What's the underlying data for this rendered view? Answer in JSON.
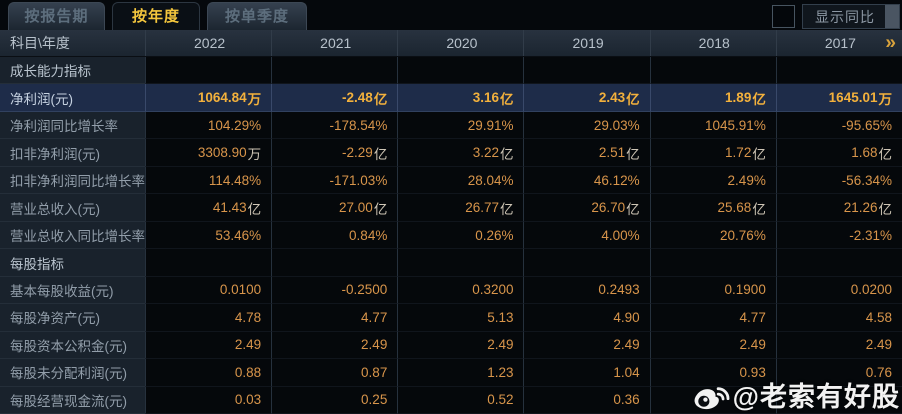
{
  "tabs": [
    {
      "label": "按报告期",
      "active": false
    },
    {
      "label": "按年度",
      "active": true
    },
    {
      "label": "按单季度",
      "active": false
    }
  ],
  "show_yoy": {
    "label": "显示同比",
    "checked": false
  },
  "table": {
    "corner_label": "科目\\年度",
    "years": [
      "2022",
      "2021",
      "2020",
      "2019",
      "2018",
      "2017"
    ],
    "more_symbol": "»",
    "rows": [
      {
        "type": "section",
        "label": "成长能力指标"
      },
      {
        "type": "data",
        "label": "净利润(元)",
        "highlight": true,
        "values": [
          "1064.84万",
          "-2.48亿",
          "3.16亿",
          "2.43亿",
          "1.89亿",
          "1645.01万"
        ]
      },
      {
        "type": "data",
        "label": "净利润同比增长率",
        "values": [
          "104.29%",
          "-178.54%",
          "29.91%",
          "29.03%",
          "1045.91%",
          "-95.65%"
        ]
      },
      {
        "type": "data",
        "label": "扣非净利润(元)",
        "values": [
          "3308.90万",
          "-2.29亿",
          "3.22亿",
          "2.51亿",
          "1.72亿",
          "1.68亿"
        ]
      },
      {
        "type": "data",
        "label": "扣非净利润同比增长率",
        "values": [
          "114.48%",
          "-171.03%",
          "28.04%",
          "46.12%",
          "2.49%",
          "-56.34%"
        ]
      },
      {
        "type": "data",
        "label": "营业总收入(元)",
        "values": [
          "41.43亿",
          "27.00亿",
          "26.77亿",
          "26.70亿",
          "25.68亿",
          "21.26亿"
        ]
      },
      {
        "type": "data",
        "label": "营业总收入同比增长率",
        "values": [
          "53.46%",
          "0.84%",
          "0.26%",
          "4.00%",
          "20.76%",
          "-2.31%"
        ]
      },
      {
        "type": "section",
        "label": "每股指标"
      },
      {
        "type": "data",
        "label": "基本每股收益(元)",
        "values": [
          "0.0100",
          "-0.2500",
          "0.3200",
          "0.2493",
          "0.1900",
          "0.0200"
        ]
      },
      {
        "type": "data",
        "label": "每股净资产(元)",
        "values": [
          "4.78",
          "4.77",
          "5.13",
          "4.90",
          "4.77",
          "4.58"
        ]
      },
      {
        "type": "data",
        "label": "每股资本公积金(元)",
        "values": [
          "2.49",
          "2.49",
          "2.49",
          "2.49",
          "2.49",
          "2.49"
        ]
      },
      {
        "type": "data",
        "label": "每股未分配利润(元)",
        "values": [
          "0.88",
          "0.87",
          "1.23",
          "1.04",
          "0.93",
          "0.76"
        ]
      },
      {
        "type": "data",
        "label": "每股经营现金流(元)",
        "values": [
          "0.03",
          "0.25",
          "0.52",
          "0.36",
          "",
          ""
        ]
      }
    ]
  },
  "watermark": {
    "text": "@老索有好股",
    "icon": "weibo-icon"
  },
  "colors": {
    "accent_gold": "#f4c63d",
    "value_orange": "#d8954b",
    "highlight_row_bg": "#1e2c49",
    "header_bg": "#222c38",
    "label_col_bg": "#19222c"
  }
}
